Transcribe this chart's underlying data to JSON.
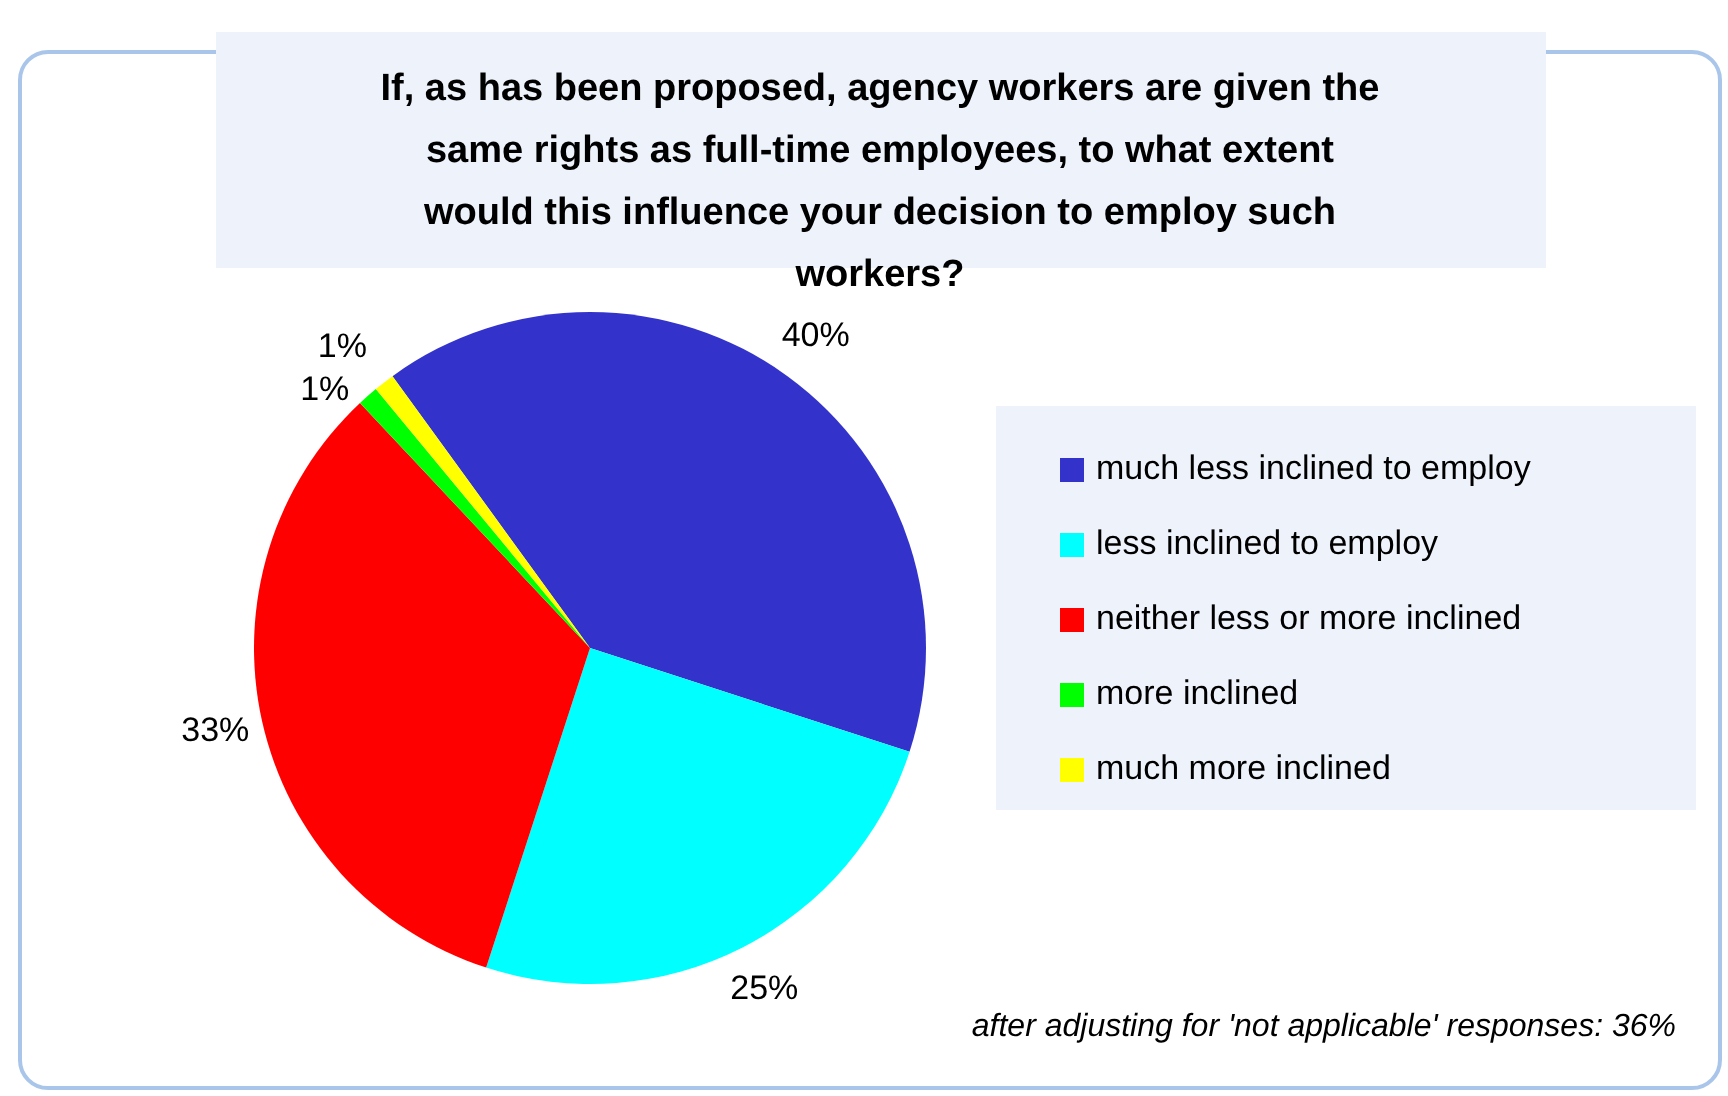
{
  "chart_data": {
    "type": "pie",
    "title": "If, as has been proposed, agency workers are given the same rights as full-time employees, to what extent would this influence your decision to employ such workers?",
    "categories": [
      "much less inclined to employ",
      "less inclined to employ",
      "neither less or more inclined",
      "more inclined",
      "much more inclined"
    ],
    "values": [
      40,
      25,
      33,
      1,
      1
    ],
    "value_labels": [
      "40%",
      "25%",
      "33%",
      "1%",
      "1%"
    ],
    "colors": [
      "#3333cc",
      "#00ffff",
      "#ff0000",
      "#00ff00",
      "#ffff00"
    ],
    "legend": "right",
    "annotations": [
      "after adjusting for 'not applicable' responses: 36%"
    ]
  }
}
